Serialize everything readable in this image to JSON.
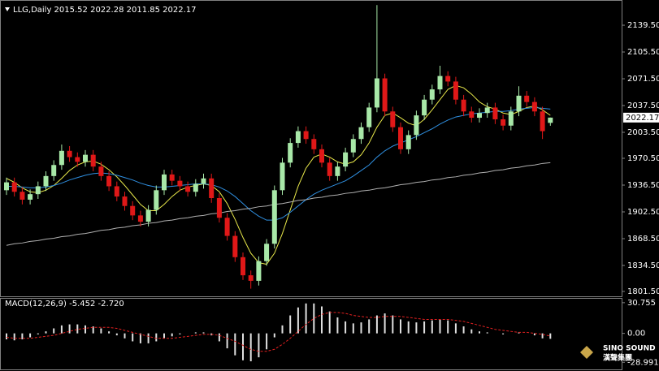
{
  "header": "LLG,Daily  2015.52 2022.28 2011.85 2022.17",
  "macd_label": "MACD(12,26,9) -5.452 -2.720",
  "logo": {
    "title": "SINO SOUND",
    "subtitle": "漢聲集團"
  },
  "chart_data": [
    {
      "type": "candlestick",
      "up_color": "#a8e8a8",
      "down_color": "#e01818",
      "ylim": [
        1795.3,
        2168.4
      ],
      "yticks": [
        {
          "value": 2139.5,
          "label": "2139.50"
        },
        {
          "value": 2105.5,
          "label": "2105.50"
        },
        {
          "value": 2071.5,
          "label": "2071.50"
        },
        {
          "value": 2037.5,
          "label": "2037.50"
        },
        {
          "value": 2003.5,
          "label": "2003.50"
        },
        {
          "value": 1970.5,
          "label": "1970.50"
        },
        {
          "value": 1936.5,
          "label": "1936.50"
        },
        {
          "value": 1902.5,
          "label": "1902.50"
        },
        {
          "value": 1868.5,
          "label": "1868.50"
        },
        {
          "value": 1834.5,
          "label": "1834.50"
        },
        {
          "value": 1801.5,
          "label": "1801.50"
        }
      ],
      "price_tag": 2022.17,
      "open": [
        1930,
        1940,
        1928,
        1918,
        1925,
        1935,
        1948,
        1962,
        1980,
        1972,
        1966,
        1975,
        1960,
        1948,
        1935,
        1922,
        1910,
        1898,
        1890,
        1905,
        1930,
        1950,
        1942,
        1935,
        1928,
        1938,
        1945,
        1920,
        1895,
        1872,
        1845,
        1822,
        1815,
        1840,
        1862,
        1930,
        1965,
        1990,
        2005,
        1995,
        1982,
        1965,
        1948,
        1960,
        1978,
        1995,
        2010,
        2035,
        2072,
        2030,
        2010,
        1982,
        2000,
        2025,
        2045,
        2058,
        2075,
        2068,
        2045,
        2030,
        2022,
        2028,
        2035,
        2020,
        2012,
        2030,
        2050,
        2042,
        2030,
        2015.52
      ],
      "high": [
        1946,
        1946,
        1934,
        1931,
        1941,
        1954,
        1968,
        1988,
        1986,
        1978,
        1981,
        1981,
        1966,
        1954,
        1941,
        1928,
        1916,
        1904,
        1911,
        1936,
        1956,
        1956,
        1948,
        1941,
        1944,
        1951,
        1951,
        1926,
        1901,
        1878,
        1851,
        1828,
        1846,
        1868,
        1936,
        1971,
        1996,
        2011,
        2011,
        2001,
        1988,
        1971,
        1966,
        1984,
        2001,
        2016,
        2041,
        2165,
        2078,
        2036,
        2016,
        2006,
        2031,
        2051,
        2064,
        2088,
        2081,
        2074,
        2051,
        2036,
        2034,
        2041,
        2041,
        2026,
        2036,
        2062,
        2056,
        2048,
        2036,
        2022.28
      ],
      "low": [
        1924,
        1922,
        1912,
        1912,
        1919,
        1929,
        1942,
        1956,
        1966,
        1960,
        1960,
        1954,
        1942,
        1929,
        1916,
        1904,
        1892,
        1884,
        1884,
        1899,
        1924,
        1936,
        1929,
        1922,
        1922,
        1932,
        1914,
        1889,
        1866,
        1839,
        1816,
        1805,
        1809,
        1834,
        1856,
        1924,
        1959,
        1984,
        1989,
        1976,
        1959,
        1942,
        1942,
        1954,
        1972,
        1989,
        2004,
        2029,
        2024,
        2004,
        1976,
        1976,
        1994,
        2019,
        2039,
        2052,
        2062,
        2039,
        2024,
        2016,
        2016,
        2022,
        2014,
        2006,
        2006,
        2024,
        2036,
        2024,
        1995,
        2011.85
      ],
      "close": [
        1940,
        1928,
        1918,
        1925,
        1935,
        1948,
        1962,
        1980,
        1972,
        1966,
        1975,
        1960,
        1948,
        1935,
        1922,
        1910,
        1898,
        1890,
        1905,
        1930,
        1950,
        1942,
        1935,
        1928,
        1938,
        1945,
        1920,
        1895,
        1872,
        1845,
        1822,
        1815,
        1840,
        1862,
        1930,
        1965,
        1990,
        2005,
        1995,
        1982,
        1965,
        1948,
        1960,
        1978,
        1995,
        2010,
        2035,
        2072,
        2030,
        2010,
        1982,
        2000,
        2025,
        2045,
        2058,
        2075,
        2068,
        2045,
        2030,
        2022,
        2028,
        2035,
        2020,
        2012,
        2030,
        2050,
        2042,
        2030,
        2005,
        2022.17
      ],
      "series": [
        {
          "color": "#e8e84a",
          "values": [
            1945,
            1940,
            1933,
            1928,
            1927,
            1930,
            1936,
            1945,
            1955,
            1962,
            1966,
            1967,
            1963,
            1956,
            1947,
            1936,
            1924,
            1912,
            1904,
            1904,
            1912,
            1922,
            1930,
            1934,
            1936,
            1938,
            1936,
            1928,
            1913,
            1893,
            1870,
            1850,
            1838,
            1836,
            1850,
            1875,
            1905,
            1935,
            1958,
            1972,
            1976,
            1972,
            1966,
            1963,
            1966,
            1975,
            1990,
            2010,
            2025,
            2028,
            2022,
            2015,
            2012,
            2020,
            2032,
            2045,
            2058,
            2063,
            2060,
            2052,
            2042,
            2036,
            2033,
            2028,
            2026,
            2030,
            2035,
            2037,
            2032,
            2025
          ]
        },
        {
          "color": "#2f8fe0",
          "values": [
            1935,
            1935,
            1934,
            1933,
            1933,
            1934,
            1936,
            1939,
            1943,
            1946,
            1949,
            1951,
            1952,
            1951,
            1949,
            1946,
            1943,
            1939,
            1936,
            1934,
            1934,
            1935,
            1936,
            1937,
            1938,
            1938,
            1937,
            1934,
            1929,
            1922,
            1913,
            1904,
            1897,
            1892,
            1892,
            1895,
            1902,
            1910,
            1918,
            1925,
            1930,
            1934,
            1938,
            1942,
            1948,
            1955,
            1962,
            1972,
            1980,
            1986,
            1990,
            1994,
            1998,
            2003,
            2008,
            2014,
            2019,
            2023,
            2025,
            2027,
            2028,
            2029,
            2030,
            2030,
            2031,
            2033,
            2034,
            2035,
            2034,
            2033
          ]
        },
        {
          "color": "#b0b0b0",
          "values": [
            1860,
            1862,
            1863,
            1865,
            1866,
            1868,
            1869,
            1871,
            1872,
            1874,
            1875,
            1877,
            1879,
            1880,
            1882,
            1883,
            1885,
            1886,
            1888,
            1889,
            1891,
            1892,
            1894,
            1895,
            1897,
            1898,
            1900,
            1901,
            1903,
            1904,
            1906,
            1907,
            1909,
            1910,
            1912,
            1913,
            1915,
            1917,
            1918,
            1920,
            1921,
            1923,
            1924,
            1926,
            1927,
            1929,
            1930,
            1932,
            1933,
            1935,
            1937,
            1938,
            1940,
            1941,
            1943,
            1944,
            1946,
            1947,
            1949,
            1950,
            1952,
            1953,
            1955,
            1956,
            1958,
            1959,
            1961,
            1962,
            1964,
            1965
          ]
        }
      ]
    },
    {
      "type": "macd",
      "ylim": [
        -35.3,
        33.9
      ],
      "yticks": [
        30.755,
        {
          "value": 0,
          "label": "0.00"
        },
        -28.991
      ],
      "histogram": {
        "color": "#e0e0e0",
        "values": [
          -6,
          -7,
          -6,
          -4,
          -1,
          2,
          5,
          8,
          9,
          9,
          8,
          7,
          5,
          2,
          -2,
          -5,
          -8,
          -10,
          -10,
          -8,
          -5,
          -3,
          -1,
          0,
          1,
          1,
          -2,
          -8,
          -15,
          -22,
          -27,
          -28,
          -24,
          -16,
          -4,
          8,
          18,
          26,
          30,
          30,
          27,
          22,
          16,
          12,
          10,
          11,
          14,
          18,
          20,
          18,
          14,
          12,
          11,
          12,
          13,
          14,
          13,
          10,
          7,
          4,
          2,
          1,
          0,
          -1,
          0,
          1,
          0,
          -2,
          -5,
          -5.452
        ]
      },
      "signal": {
        "color": "#e02020",
        "values": [
          -4,
          -5,
          -5,
          -5,
          -4,
          -3,
          -2,
          0,
          2,
          4,
          5,
          6,
          6,
          6,
          5,
          3,
          1,
          -1,
          -3,
          -5,
          -5,
          -5,
          -4,
          -3,
          -2,
          -1,
          -1,
          -2,
          -5,
          -8,
          -12,
          -16,
          -18,
          -18,
          -16,
          -11,
          -5,
          2,
          9,
          15,
          19,
          21,
          21,
          20,
          18,
          17,
          16,
          16,
          17,
          17,
          17,
          16,
          15,
          14,
          14,
          14,
          14,
          13,
          12,
          10,
          8,
          6,
          4,
          3,
          2,
          1,
          1,
          0,
          -1,
          -2.72
        ]
      }
    }
  ]
}
